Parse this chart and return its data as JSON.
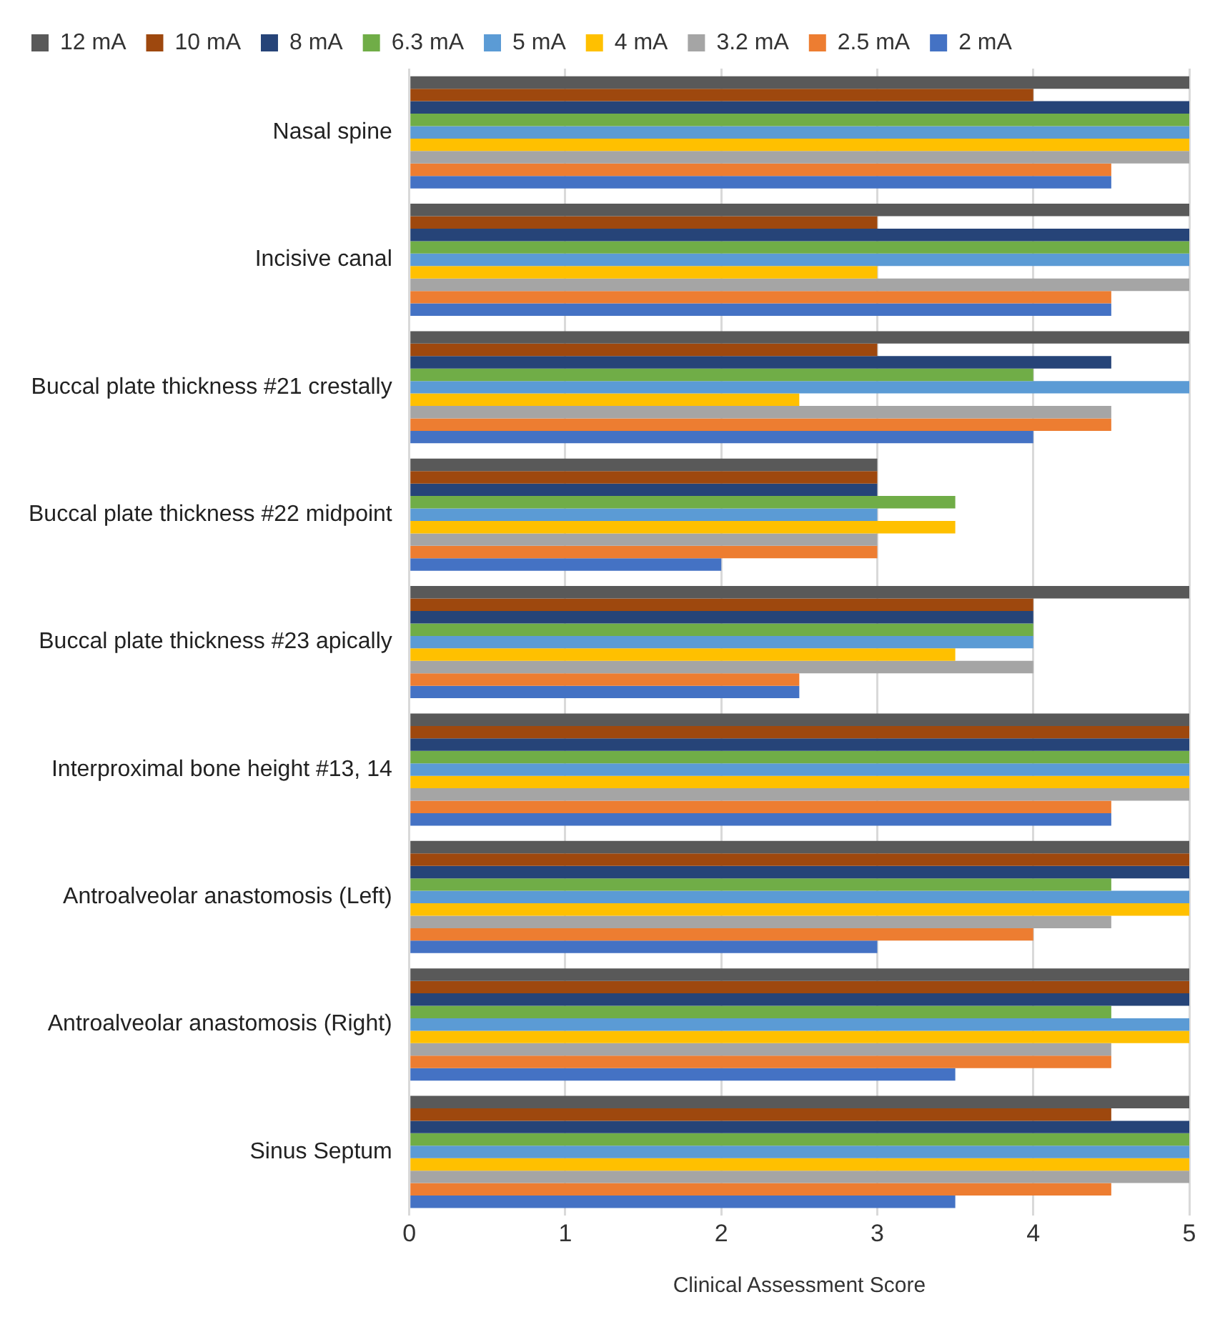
{
  "chart_data": {
    "type": "bar",
    "orientation": "horizontal",
    "xlabel": "Clinical Assessment Score",
    "categories": [
      "Nasal spine",
      "Incisive canal",
      "Buccal plate thickness #21 crestally",
      "Buccal plate thickness #22 midpoint",
      "Buccal plate thickness #23 apically",
      "Interproximal bone height #13, 14",
      "Antroalveolar anastomosis (Left)",
      "Antroalveolar anastomosis (Right)",
      "Sinus Septum"
    ],
    "series": [
      {
        "name": "12 mA",
        "color": "#595959",
        "values": [
          5,
          5,
          5,
          3,
          5,
          5,
          5,
          5,
          5
        ]
      },
      {
        "name": "10 mA",
        "color": "#9e480e",
        "values": [
          4,
          3,
          3,
          3,
          4,
          5,
          5,
          5,
          4.5
        ]
      },
      {
        "name": "8 mA",
        "color": "#264478",
        "values": [
          5,
          5,
          4.5,
          3,
          4,
          5,
          5,
          5,
          5
        ]
      },
      {
        "name": "6.3 mA",
        "color": "#70ad47",
        "values": [
          5,
          5,
          4,
          3.5,
          4,
          5,
          4.5,
          4.5,
          5
        ]
      },
      {
        "name": "5 mA",
        "color": "#5b9bd5",
        "values": [
          5,
          5,
          5,
          3,
          4,
          5,
          5,
          5,
          5
        ]
      },
      {
        "name": "4 mA",
        "color": "#ffc000",
        "values": [
          5,
          3,
          2.5,
          3.5,
          3.5,
          5,
          5,
          5,
          5
        ]
      },
      {
        "name": "3.2 mA",
        "color": "#a5a5a5",
        "values": [
          5,
          5,
          4.5,
          3,
          4,
          5,
          4.5,
          4.5,
          5
        ]
      },
      {
        "name": "2.5 mA",
        "color": "#ed7d31",
        "values": [
          4.5,
          4.5,
          4.5,
          3,
          2.5,
          4.5,
          4,
          4.5,
          4.5
        ]
      },
      {
        "name": "2 mA",
        "color": "#4472c4",
        "values": [
          4.5,
          4.5,
          4,
          2,
          2.5,
          4.5,
          3,
          3.5,
          3.5
        ]
      }
    ],
    "xlim": [
      0,
      5
    ],
    "xticks": [
      0,
      1,
      2,
      3,
      4,
      5
    ],
    "grid": "x",
    "legend": "top"
  }
}
